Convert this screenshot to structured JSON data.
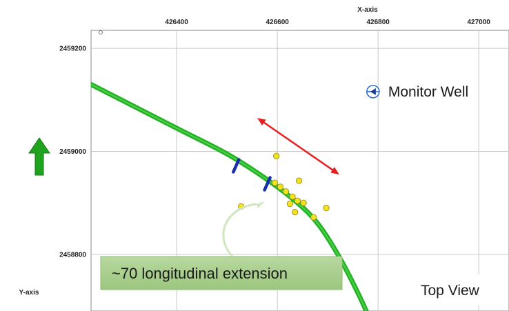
{
  "chart_data": {
    "type": "scatter",
    "title": "",
    "xlabel": "X-axis",
    "ylabel": "Y-axis",
    "xlim": [
      426230,
      427060
    ],
    "ylim": [
      2458690,
      2459235
    ],
    "x_ticks": [
      426400,
      426600,
      426800,
      427000
    ],
    "y_ticks": [
      2459200,
      2459000,
      2458800
    ],
    "grid": true,
    "colors": {
      "well_path": "#22b322",
      "events": "#f3e21f",
      "event_stroke": "#8f8a10",
      "stage_markers": "#1b2ea8",
      "arrow": "#e52020",
      "north_arrow": "#1fa31f",
      "callout_bg": "#a9cf8e",
      "monitor_icon": "#2a6fd6"
    },
    "well_path": [
      {
        "x": 426230,
        "y": 2459130
      },
      {
        "x": 426400,
        "y": 2459045
      },
      {
        "x": 426500,
        "y": 2458995
      },
      {
        "x": 426580,
        "y": 2458945
      },
      {
        "x": 426640,
        "y": 2458900
      },
      {
        "x": 426680,
        "y": 2458860
      },
      {
        "x": 426720,
        "y": 2458800
      },
      {
        "x": 426760,
        "y": 2458725
      },
      {
        "x": 426790,
        "y": 2458660
      }
    ],
    "stage_markers": [
      {
        "x": 426518,
        "y": 2458972
      },
      {
        "x": 426580,
        "y": 2458937
      }
    ],
    "events": [
      {
        "x": 426598,
        "y": 2458991
      },
      {
        "x": 426595,
        "y": 2458939
      },
      {
        "x": 426606,
        "y": 2458931
      },
      {
        "x": 426617,
        "y": 2458922
      },
      {
        "x": 426643,
        "y": 2458943
      },
      {
        "x": 426630,
        "y": 2458912
      },
      {
        "x": 426640,
        "y": 2458904
      },
      {
        "x": 426652,
        "y": 2458900
      },
      {
        "x": 426625,
        "y": 2458898
      },
      {
        "x": 426672,
        "y": 2458872
      },
      {
        "x": 426697,
        "y": 2458890
      },
      {
        "x": 426635,
        "y": 2458882
      },
      {
        "x": 426528,
        "y": 2458893
      }
    ],
    "extent_arrow": {
      "from": {
        "x": 426560,
        "y": 2459065
      },
      "to": {
        "x": 426723,
        "y": 2458955
      }
    },
    "monitor_well": {
      "x": 426790,
      "y": 2459116,
      "label": "Monitor Well"
    },
    "annotation": "~70 longitudinal extension",
    "view_label": "Top View"
  }
}
